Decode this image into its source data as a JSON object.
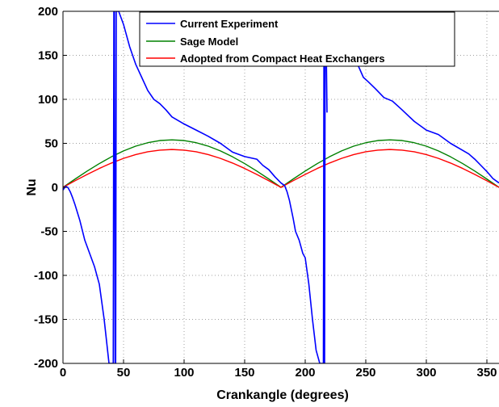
{
  "chart_data": {
    "type": "line",
    "title": "",
    "xlabel": "Crankangle (degrees)",
    "ylabel": "Nu",
    "xlim": [
      0,
      360
    ],
    "ylim": [
      -200,
      200
    ],
    "x_ticks": [
      0,
      50,
      100,
      150,
      200,
      250,
      300,
      350
    ],
    "x_tick_labels": [
      "0",
      "50",
      "100",
      "150",
      "200",
      "250",
      "300",
      "350"
    ],
    "y_ticks": [
      200,
      150,
      100,
      50,
      0,
      -50,
      -100,
      -150,
      -200
    ],
    "y_tick_labels": [
      "200",
      "150",
      "100",
      "50",
      "0",
      "-50",
      "-100",
      "-150",
      "-200"
    ],
    "grid": true,
    "legend_position": "top-right",
    "series": [
      {
        "name": "Current Experiment",
        "color": "#0000ff",
        "x": [
          0,
          2,
          4,
          6,
          8,
          10,
          14,
          18,
          22,
          26,
          30,
          34,
          36,
          38,
          40,
          41,
          41.5,
          42,
          42.5,
          43,
          43.5,
          44,
          46,
          50,
          55,
          60,
          65,
          70,
          75,
          80,
          85,
          90,
          100,
          110,
          120,
          130,
          140,
          150,
          160,
          165,
          170,
          175,
          180,
          183,
          185,
          187,
          190,
          192,
          195,
          198,
          200,
          203,
          206,
          209,
          212,
          214,
          215,
          215.5,
          216,
          216.5,
          217,
          218
        ],
        "y": [
          -3,
          1,
          0,
          -5,
          -12,
          -20,
          -38,
          -60,
          -75,
          -90,
          -110,
          -150,
          -175,
          -200,
          -200,
          -200,
          -200,
          200,
          200,
          -200,
          -200,
          200,
          200,
          185,
          160,
          140,
          125,
          110,
          100,
          95,
          88,
          80,
          72,
          65,
          58,
          50,
          40,
          35,
          32,
          25,
          20,
          12,
          5,
          2,
          -5,
          -15,
          -35,
          -50,
          -60,
          -75,
          -80,
          -110,
          -150,
          -185,
          -200,
          -200,
          -200,
          200,
          -200,
          200,
          200,
          85
        ]
      },
      {
        "name": "Current Experiment",
        "color": "#0000ff",
        "x": [
          232,
          240,
          248,
          252,
          258,
          265,
          272,
          280,
          290,
          300,
          310,
          320,
          330,
          335,
          340,
          345,
          350,
          355,
          360
        ],
        "y": [
          200,
          150,
          125,
          120,
          112,
          102,
          98,
          88,
          75,
          65,
          60,
          50,
          42,
          38,
          32,
          25,
          18,
          10,
          5
        ]
      },
      {
        "name": "Sage Model",
        "color": "#008000",
        "x": [
          0,
          10,
          20,
          30,
          40,
          50,
          60,
          70,
          80,
          90,
          100,
          110,
          120,
          130,
          140,
          150,
          160,
          170,
          180,
          190,
          200,
          210,
          220,
          230,
          240,
          250,
          260,
          270,
          280,
          290,
          300,
          310,
          320,
          330,
          340,
          350,
          360
        ],
        "y": [
          0,
          9.4,
          18.5,
          27,
          34.7,
          41.4,
          46.8,
          50.7,
          53.2,
          54,
          53.2,
          50.7,
          46.8,
          41.4,
          34.7,
          27,
          18.5,
          9.4,
          0,
          9.4,
          18.5,
          27,
          34.7,
          41.4,
          46.8,
          50.7,
          53.2,
          54,
          53.2,
          50.7,
          46.8,
          41.4,
          34.7,
          27,
          18.5,
          9.4,
          0
        ]
      },
      {
        "name": "Adopted from Compact Heat Exchangers",
        "color": "#ff0000",
        "x": [
          0,
          10,
          20,
          30,
          40,
          50,
          60,
          70,
          80,
          90,
          100,
          110,
          120,
          130,
          140,
          150,
          160,
          170,
          180,
          190,
          200,
          210,
          220,
          230,
          240,
          250,
          260,
          270,
          280,
          290,
          300,
          310,
          320,
          330,
          340,
          350,
          360
        ],
        "y": [
          0,
          7.5,
          14.7,
          21.5,
          27.6,
          32.9,
          37.2,
          40.4,
          42.3,
          43,
          42.3,
          40.4,
          37.2,
          32.9,
          27.6,
          21.5,
          14.7,
          7.5,
          0,
          7.5,
          14.7,
          21.5,
          27.6,
          32.9,
          37.2,
          40.4,
          42.3,
          43,
          42.3,
          40.4,
          37.2,
          32.9,
          27.6,
          21.5,
          14.7,
          7.5,
          0
        ]
      }
    ]
  }
}
